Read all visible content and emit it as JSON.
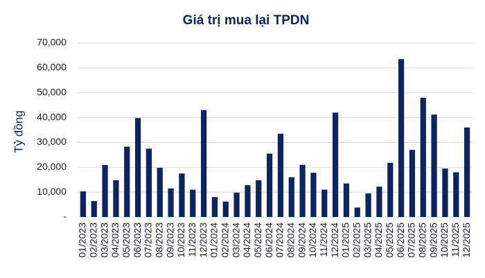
{
  "chart_data": {
    "type": "bar",
    "title": "Giá trị mua lại TPDN",
    "y_label": "Tỷ đồng",
    "categories": [
      "01/2023",
      "02/2023",
      "03/2023",
      "04/2023",
      "05/2023",
      "06/2023",
      "07/2023",
      "08/2023",
      "09/2023",
      "10/2023",
      "11/2023",
      "12/2023",
      "01/2024",
      "02/2024",
      "03/2024",
      "04/2024",
      "05/2024",
      "06/2024",
      "07/2024",
      "08/2024",
      "09/2024",
      "10/2024",
      "11/2024",
      "12/2024",
      "01/2025",
      "02/2025",
      "03/2025",
      "04/2025",
      "05/2025",
      "06/2025",
      "07/2025",
      "08/2025",
      "09/2025",
      "10/2025",
      "11/2025",
      "12/2025"
    ],
    "values": [
      10300,
      6400,
      20900,
      14800,
      28300,
      39800,
      27500,
      19800,
      11500,
      17500,
      11000,
      43000,
      8000,
      6200,
      9800,
      12800,
      14800,
      25500,
      33500,
      16000,
      21000,
      17800,
      11000,
      42000,
      13500,
      3800,
      9500,
      12200,
      21800,
      63500,
      27000,
      48000,
      41200,
      19500,
      18000,
      36000
    ],
    "color": "#0d2460",
    "ylim": [
      0,
      70000
    ],
    "yticks": [
      {
        "value": 0,
        "label": "-"
      },
      {
        "value": 10000,
        "label": "10,000"
      },
      {
        "value": 20000,
        "label": "20,000"
      },
      {
        "value": 30000,
        "label": "30,000"
      },
      {
        "value": 40000,
        "label": "40,000"
      },
      {
        "value": 50000,
        "label": "50,000"
      },
      {
        "value": 60000,
        "label": "60,000"
      },
      {
        "value": 70000,
        "label": "70,000"
      }
    ],
    "grid": true
  }
}
